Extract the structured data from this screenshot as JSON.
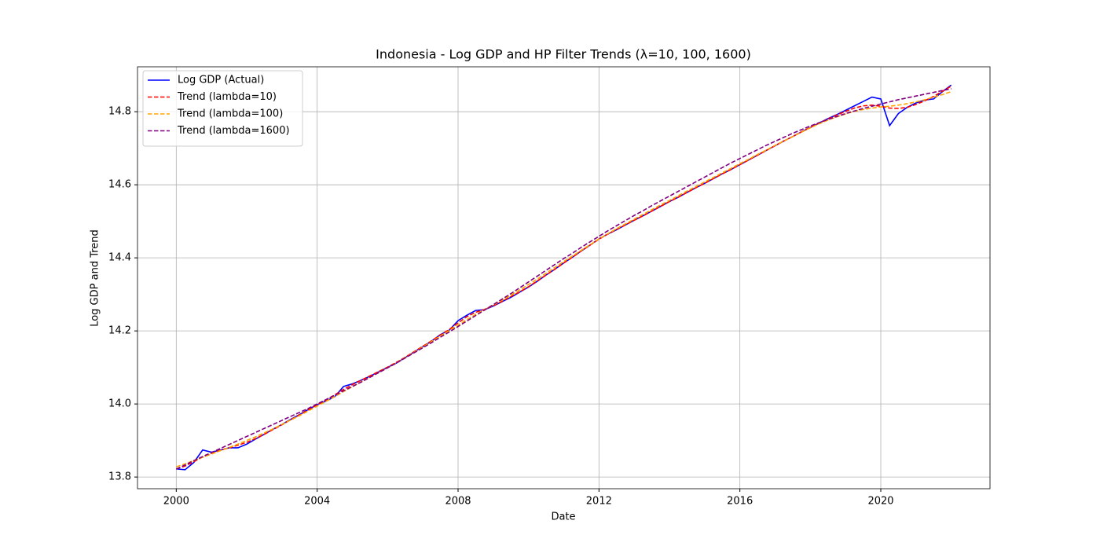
{
  "chart_data": {
    "type": "line",
    "title": "Indonesia - Log GDP and HP Filter Trends (λ=10, 100, 1600)",
    "xlabel": "Date",
    "ylabel": "Log GDP and Trend",
    "x": [
      2000,
      2000.25,
      2000.5,
      2000.75,
      2001,
      2001.25,
      2001.5,
      2001.75,
      2002,
      2002.25,
      2002.5,
      2002.75,
      2003,
      2003.25,
      2003.5,
      2003.75,
      2004,
      2004.25,
      2004.5,
      2004.75,
      2005,
      2005.25,
      2005.5,
      2005.75,
      2006,
      2006.25,
      2006.5,
      2006.75,
      2007,
      2007.25,
      2007.5,
      2007.75,
      2008,
      2008.25,
      2008.5,
      2008.75,
      2009,
      2009.25,
      2009.5,
      2009.75,
      2010,
      2010.25,
      2010.5,
      2010.75,
      2011,
      2011.25,
      2011.5,
      2011.75,
      2012,
      2012.25,
      2012.5,
      2012.75,
      2013,
      2013.25,
      2013.5,
      2013.75,
      2014,
      2014.25,
      2014.5,
      2014.75,
      2015,
      2015.25,
      2015.5,
      2015.75,
      2016,
      2016.25,
      2016.5,
      2016.75,
      2017,
      2017.25,
      2017.5,
      2017.75,
      2018,
      2018.25,
      2018.5,
      2018.75,
      2019,
      2019.25,
      2019.5,
      2019.75,
      2020,
      2020.25,
      2020.5,
      2020.75,
      2021,
      2021.25,
      2021.5,
      2021.75,
      2022
    ],
    "series": [
      {
        "name": "Log GDP (Actual)",
        "color": "#0000ff",
        "linestyle": "solid",
        "values": [
          13.822,
          13.82,
          13.84,
          13.874,
          13.868,
          13.874,
          13.88,
          13.88,
          13.89,
          13.904,
          13.917,
          13.931,
          13.944,
          13.958,
          13.971,
          13.985,
          13.998,
          14.008,
          14.02,
          14.048,
          14.055,
          14.065,
          14.076,
          14.088,
          14.1,
          14.112,
          14.127,
          14.142,
          14.157,
          14.172,
          14.19,
          14.202,
          14.228,
          14.243,
          14.256,
          14.258,
          14.268,
          14.28,
          14.292,
          14.306,
          14.32,
          14.336,
          14.353,
          14.369,
          14.386,
          14.402,
          14.419,
          14.435,
          14.452,
          14.465,
          14.477,
          14.49,
          14.503,
          14.515,
          14.528,
          14.541,
          14.554,
          14.566,
          14.579,
          14.592,
          14.604,
          14.617,
          14.63,
          14.642,
          14.655,
          14.668,
          14.681,
          14.694,
          14.707,
          14.72,
          14.732,
          14.745,
          14.757,
          14.769,
          14.781,
          14.792,
          14.804,
          14.816,
          14.828,
          14.84,
          14.835,
          14.762,
          14.795,
          14.812,
          14.824,
          14.832,
          14.835,
          14.855,
          14.873
        ]
      },
      {
        "name": "Trend (lambda=10)",
        "color": "#ff0000",
        "linestyle": "dashed",
        "values": [
          13.822,
          13.83,
          13.842,
          13.855,
          13.865,
          13.873,
          13.88,
          13.887,
          13.895,
          13.905,
          13.917,
          13.93,
          13.943,
          13.957,
          13.97,
          13.984,
          13.998,
          14.011,
          14.025,
          14.04,
          14.053,
          14.065,
          14.077,
          14.089,
          14.101,
          14.114,
          14.128,
          14.143,
          14.158,
          14.173,
          14.189,
          14.204,
          14.222,
          14.239,
          14.251,
          14.259,
          14.269,
          14.281,
          14.294,
          14.307,
          14.321,
          14.337,
          14.353,
          14.369,
          14.386,
          14.402,
          14.419,
          14.435,
          14.451,
          14.465,
          14.478,
          14.49,
          14.503,
          14.515,
          14.528,
          14.541,
          14.554,
          14.566,
          14.579,
          14.592,
          14.604,
          14.617,
          14.63,
          14.642,
          14.655,
          14.668,
          14.681,
          14.694,
          14.707,
          14.72,
          14.732,
          14.745,
          14.757,
          14.769,
          14.78,
          14.791,
          14.801,
          14.81,
          14.816,
          14.818,
          14.815,
          14.81,
          14.809,
          14.812,
          14.82,
          14.83,
          14.842,
          14.856,
          14.87
        ]
      },
      {
        "name": "Trend (lambda=100)",
        "color": "#ffa500",
        "linestyle": "dashed",
        "values": [
          13.828,
          13.836,
          13.845,
          13.854,
          13.863,
          13.872,
          13.881,
          13.89,
          13.9,
          13.91,
          13.921,
          13.932,
          13.944,
          13.956,
          13.968,
          13.981,
          13.994,
          14.007,
          14.02,
          14.034,
          14.047,
          14.06,
          14.073,
          14.086,
          14.099,
          14.113,
          14.127,
          14.141,
          14.156,
          14.171,
          14.186,
          14.201,
          14.216,
          14.231,
          14.245,
          14.258,
          14.271,
          14.284,
          14.298,
          14.312,
          14.327,
          14.342,
          14.358,
          14.374,
          14.39,
          14.405,
          14.421,
          14.436,
          14.452,
          14.466,
          14.48,
          14.493,
          14.506,
          14.519,
          14.532,
          14.545,
          14.557,
          14.57,
          14.583,
          14.595,
          14.608,
          14.62,
          14.633,
          14.645,
          14.658,
          14.67,
          14.683,
          14.695,
          14.708,
          14.72,
          14.732,
          14.744,
          14.756,
          14.767,
          14.777,
          14.786,
          14.794,
          14.801,
          14.806,
          14.81,
          14.813,
          14.815,
          14.818,
          14.822,
          14.827,
          14.833,
          14.84,
          14.847,
          14.855
        ]
      },
      {
        "name": "Trend (lambda=1600)",
        "color": "#800080",
        "linestyle": "dashed",
        "values": [
          13.822,
          13.833,
          13.845,
          13.856,
          13.867,
          13.878,
          13.889,
          13.9,
          13.911,
          13.922,
          13.933,
          13.944,
          13.955,
          13.966,
          13.977,
          13.988,
          14.0,
          14.012,
          14.024,
          14.036,
          14.048,
          14.06,
          14.073,
          14.086,
          14.099,
          14.112,
          14.126,
          14.14,
          14.154,
          14.168,
          14.183,
          14.197,
          14.212,
          14.227,
          14.242,
          14.257,
          14.272,
          14.287,
          14.302,
          14.318,
          14.334,
          14.35,
          14.366,
          14.382,
          14.398,
          14.413,
          14.429,
          14.444,
          14.459,
          14.474,
          14.488,
          14.502,
          14.516,
          14.529,
          14.543,
          14.556,
          14.569,
          14.582,
          14.595,
          14.608,
          14.621,
          14.634,
          14.647,
          14.66,
          14.672,
          14.684,
          14.696,
          14.708,
          14.719,
          14.73,
          14.741,
          14.751,
          14.761,
          14.77,
          14.779,
          14.787,
          14.795,
          14.802,
          14.809,
          14.815,
          14.821,
          14.827,
          14.833,
          14.838,
          14.843,
          14.848,
          14.853,
          14.858,
          14.863
        ]
      }
    ],
    "xlim": [
      1998.9,
      2023.1
    ],
    "xticks": [
      2000,
      2004,
      2008,
      2012,
      2016,
      2020
    ],
    "ylim": [
      13.768,
      14.923
    ],
    "yticks": [
      {
        "value": 13.8,
        "label": "13.8"
      },
      {
        "value": 14.0,
        "label": "14.0"
      },
      {
        "value": 14.2,
        "label": "14.2"
      },
      {
        "value": 14.4,
        "label": "14.4"
      },
      {
        "value": 14.6,
        "label": "14.6"
      },
      {
        "value": 14.8,
        "label": "14.8"
      }
    ],
    "grid": true,
    "legend": "upper left"
  }
}
